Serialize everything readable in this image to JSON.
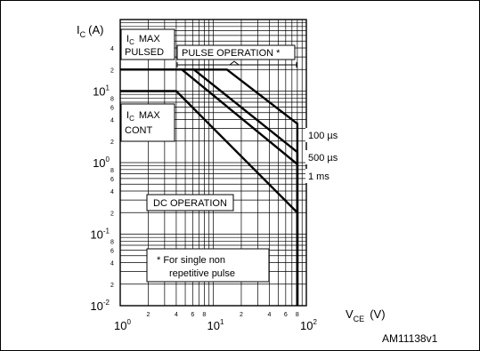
{
  "chart_data": {
    "type": "line",
    "title": "",
    "xscale": "log",
    "yscale": "log",
    "xlim": [
      1,
      100
    ],
    "ylim": [
      0.01,
      100
    ],
    "grid": true,
    "y_axis": {
      "label_sym": "I",
      "label_sub": "C",
      "label_unit": "(A)",
      "decade_ticks": [
        {
          "value": 0.01,
          "base": "10",
          "exp": "-2"
        },
        {
          "value": 0.1,
          "base": "10",
          "exp": "-1"
        },
        {
          "value": 1,
          "base": "10",
          "exp": "0"
        },
        {
          "value": 10,
          "base": "10",
          "exp": "1"
        }
      ],
      "minor_labels": [
        {
          "value": 0.02,
          "text": "2"
        },
        {
          "value": 0.04,
          "text": "4"
        },
        {
          "value": 0.06,
          "text": "6"
        },
        {
          "value": 0.08,
          "text": "8"
        },
        {
          "value": 0.2,
          "text": "2"
        },
        {
          "value": 0.4,
          "text": "4"
        },
        {
          "value": 0.6,
          "text": "6"
        },
        {
          "value": 0.8,
          "text": "8"
        },
        {
          "value": 2,
          "text": "2"
        },
        {
          "value": 4,
          "text": "4"
        },
        {
          "value": 6,
          "text": "6"
        },
        {
          "value": 8,
          "text": "8"
        },
        {
          "value": 20,
          "text": "2"
        },
        {
          "value": 40,
          "text": "4"
        }
      ]
    },
    "x_axis": {
      "label_sym": "V",
      "label_sub": "CE",
      "label_unit": "(V)",
      "decade_ticks": [
        {
          "value": 1,
          "base": "10",
          "exp": "0"
        },
        {
          "value": 10,
          "base": "10",
          "exp": "1"
        },
        {
          "value": 100,
          "base": "10",
          "exp": "2"
        }
      ],
      "minor_labels": [
        {
          "value": 2,
          "text": "2"
        },
        {
          "value": 4,
          "text": "4"
        },
        {
          "value": 6,
          "text": "6"
        },
        {
          "value": 8,
          "text": "8"
        },
        {
          "value": 20,
          "text": "2"
        },
        {
          "value": 40,
          "text": "4"
        },
        {
          "value": 60,
          "text": "6"
        },
        {
          "value": 80,
          "text": "8"
        }
      ]
    },
    "series": [
      {
        "name": "100 µs",
        "points": [
          [
            1,
            20
          ],
          [
            14,
            20
          ],
          [
            80,
            3.5
          ],
          [
            80,
            0.01
          ]
        ]
      },
      {
        "name": "500 µs",
        "points": [
          [
            1,
            20
          ],
          [
            6.2,
            20
          ],
          [
            80,
            1.4
          ],
          [
            80,
            0.01
          ]
        ]
      },
      {
        "name": "1 ms",
        "points": [
          [
            1,
            20
          ],
          [
            4.6,
            20
          ],
          [
            80,
            0.95
          ],
          [
            80,
            0.01
          ]
        ]
      },
      {
        "name": "DC OPERATION",
        "points": [
          [
            1,
            10
          ],
          [
            4,
            10
          ],
          [
            80,
            0.2
          ],
          [
            80,
            0.01
          ]
        ]
      }
    ],
    "annotations": {
      "ic_max_pulsed_line1": "I",
      "ic_max_pulsed_sub": "C",
      "ic_max_pulsed_max": "MAX",
      "ic_max_pulsed_line2": "PULSED",
      "ic_max_cont_line1": "I",
      "ic_max_cont_sub": "C",
      "ic_max_cont_max": "MAX",
      "ic_max_cont_line2": "CONT",
      "pulse_operation": "PULSE OPERATION *",
      "dc_operation": "DC OPERATION",
      "footnote_line1": "*  For single non",
      "footnote_line2": "repetitive pulse",
      "figure_code": "AM11138v1"
    }
  }
}
